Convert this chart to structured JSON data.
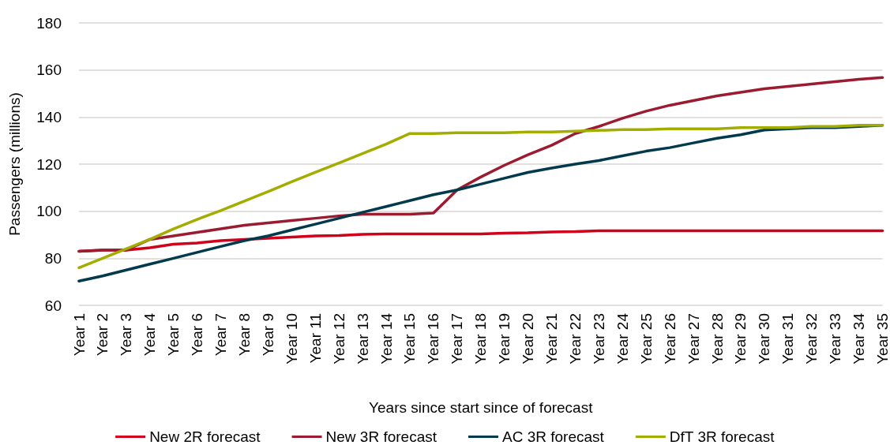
{
  "chart_data": {
    "type": "line",
    "xlabel": "Years since start since of forecast",
    "ylabel": "Passengers (millions)",
    "categories": [
      "Year 1",
      "Year 2",
      "Year 3",
      "Year 4",
      "Year 5",
      "Year 6",
      "Year 7",
      "Year 8",
      "Year 9",
      "Year 10",
      "Year 11",
      "Year 12",
      "Year 13",
      "Year 14",
      "Year 15",
      "Year 16",
      "Year 17",
      "Year 18",
      "Year 19",
      "Year 20",
      "Year 21",
      "Year 22",
      "Year 23",
      "Year 24",
      "Year 25",
      "Year 26",
      "Year 27",
      "Year 28",
      "Year 29",
      "Year 30",
      "Year 31",
      "Year 32",
      "Year 33",
      "Year 34",
      "Year 35"
    ],
    "series": [
      {
        "name": "New 2R forecast",
        "color": "#d0021b",
        "values": [
          83,
          83.5,
          83.5,
          84.5,
          86,
          86.5,
          87.5,
          88,
          88.5,
          89,
          89.5,
          89.7,
          90.2,
          90.3,
          90.3,
          90.3,
          90.3,
          90.3,
          90.7,
          90.8,
          91.2,
          91.3,
          91.7,
          91.7,
          91.7,
          91.7,
          91.7,
          91.7,
          91.7,
          91.7,
          91.7,
          91.7,
          91.7,
          91.7,
          91.7
        ]
      },
      {
        "name": "New 3R forecast",
        "color": "#9b1b30",
        "values": [
          83,
          83.5,
          83.5,
          88,
          89.5,
          91,
          92.5,
          94,
          95,
          96,
          97,
          98,
          98.7,
          98.7,
          98.7,
          99.2,
          109,
          114.5,
          119.5,
          124,
          128,
          133,
          136,
          139.5,
          142.5,
          145,
          147,
          149,
          150.5,
          152,
          153,
          154,
          155,
          156,
          156.8
        ]
      },
      {
        "name": "AC 3R forecast",
        "color": "#003a4c",
        "values": [
          70.3,
          72.5,
          75,
          77.5,
          80,
          82.5,
          85,
          87.5,
          89.5,
          92,
          94.5,
          97,
          99.5,
          102,
          104.5,
          107,
          109,
          111.5,
          114,
          116.5,
          118.3,
          120,
          121.5,
          123.5,
          125.5,
          127,
          129,
          131,
          132.5,
          134.5,
          135,
          135.5,
          135.5,
          136,
          136.5
        ]
      },
      {
        "name": "DfT 3R forecast",
        "color": "#a3ad00",
        "values": [
          76,
          80,
          84,
          88,
          92.5,
          96.5,
          100.3,
          104.3,
          108.3,
          112.5,
          116.5,
          120.5,
          124.5,
          128.5,
          133,
          133,
          133.3,
          133.3,
          133.3,
          133.7,
          133.7,
          134,
          134.3,
          134.7,
          134.7,
          135,
          135,
          135,
          135.5,
          135.5,
          135.5,
          136,
          136,
          136.5,
          136.5
        ]
      }
    ],
    "ylim": [
      60,
      180
    ],
    "yticks": [
      60,
      80,
      100,
      120,
      140,
      160,
      180
    ],
    "grid": "y",
    "legend": "bottom",
    "marker": "none",
    "line_style": "solid"
  }
}
